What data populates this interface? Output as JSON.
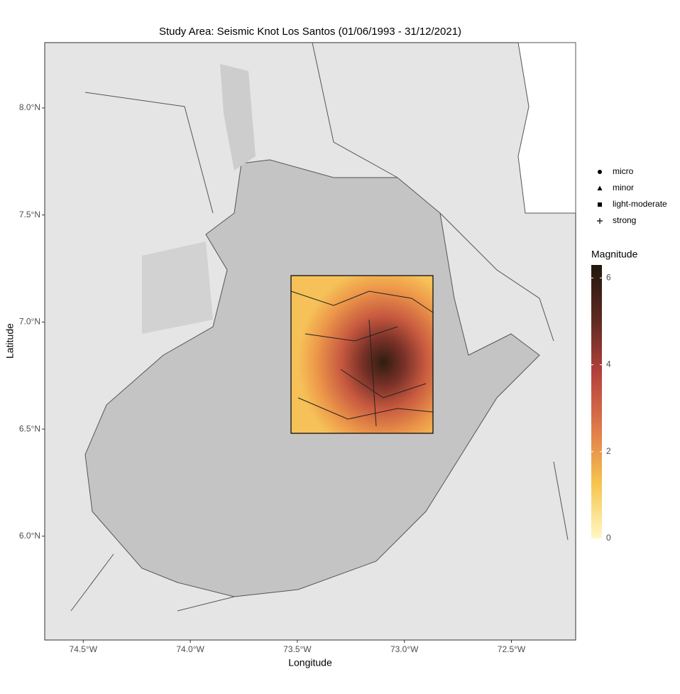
{
  "chart_data": {
    "type": "map",
    "title": "Study Area: Seismic Knot Los Santos (01/06/1993 - 31/12/2021)",
    "x_label": "Longitude",
    "y_label": "Latitude",
    "xlim": [
      -74.68,
      -72.2
    ],
    "xticks": [
      {
        "value": -74.5,
        "label": "74.5°W"
      },
      {
        "value": -74.0,
        "label": "74.0°W"
      },
      {
        "value": -73.5,
        "label": "73.5°W"
      },
      {
        "value": -73.0,
        "label": "73.0°W"
      },
      {
        "value": -72.5,
        "label": "72.5°W"
      }
    ],
    "ylim": [
      5.515,
      8.305
    ],
    "yticks": [
      {
        "value": 6.0,
        "label": "6.0°N"
      },
      {
        "value": 6.5,
        "label": "6.5°N"
      },
      {
        "value": 7.0,
        "label": "7.0°N"
      },
      {
        "value": 7.5,
        "label": "7.5°N"
      },
      {
        "value": 8.0,
        "label": "8.0°N"
      }
    ],
    "shape_legend": [
      "micro",
      "minor",
      "light-moderate",
      "strong"
    ],
    "colorbar": {
      "title": "Magnitude",
      "lim": [
        0,
        6.3
      ],
      "ticks": [
        0,
        2,
        4,
        6
      ],
      "colors": [
        "#fff8c4",
        "#f6c54d",
        "#e07a4a",
        "#b5423d",
        "#5e2a22",
        "#22170c"
      ]
    }
  }
}
